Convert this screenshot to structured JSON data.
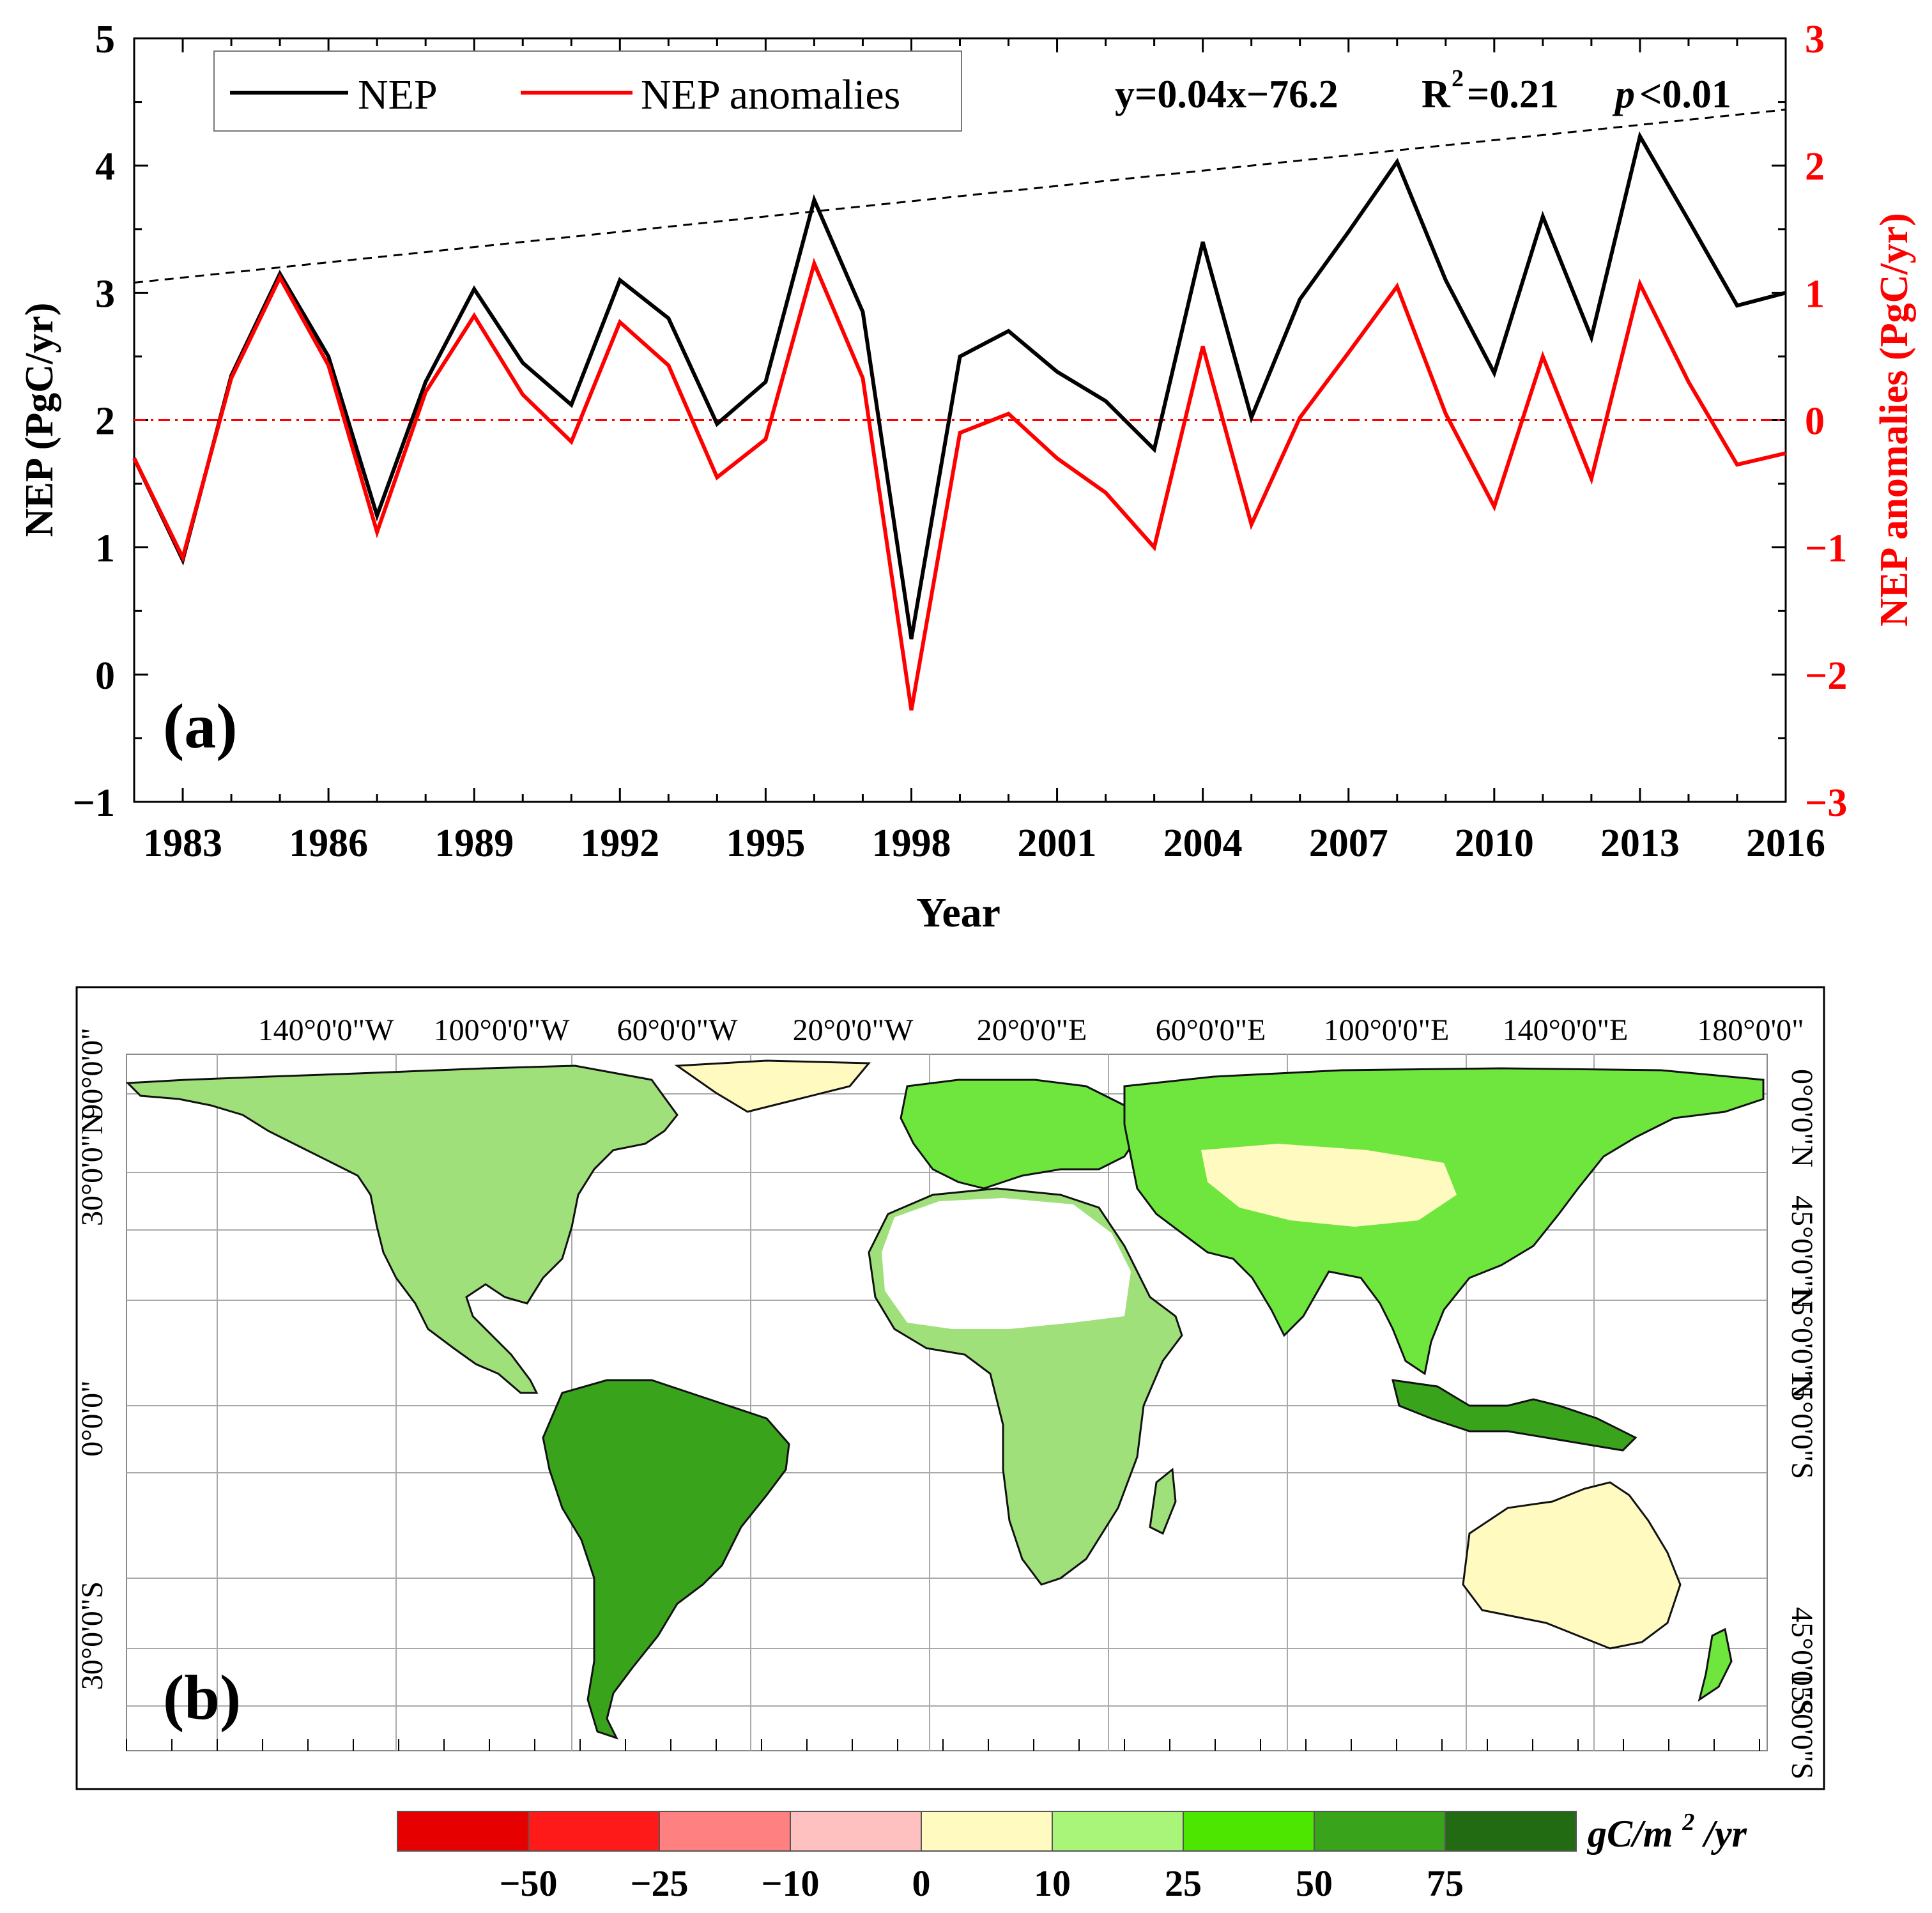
{
  "colors": {
    "nep": "#000000",
    "anomaly": "#ff0000",
    "trend": "#000000",
    "zero_line": "#ff0000",
    "ocean": "#ffffff",
    "land_base": "#fffac0",
    "grid": "#a9a9a9"
  },
  "panel_a": {
    "label": "(a)",
    "equation": {
      "fit": "y=0.04x−76.2",
      "r_label": "R",
      "r_sup": "2",
      "r_value": "=0.21",
      "p_label": "p",
      "p_value": "<0.01"
    },
    "legend": [
      {
        "name": "NEP",
        "color": "#000000"
      },
      {
        "name": "NEP anomalies",
        "color": "#ff0000"
      }
    ]
  },
  "panel_b": {
    "label": "(b)",
    "top_labels": [
      "140°0'0\"W",
      "100°0'0\"W",
      "60°0'0\"W",
      "20°0'0\"W",
      "20°0'0\"E",
      "60°0'0\"E",
      "100°0'0\"E",
      "140°0'0\"E",
      "180°0'0\""
    ],
    "left_labels": [
      "90°0'0\"",
      "30°0'0\"N",
      "0°0'0\"",
      "30°0'0\"S"
    ],
    "left_labels_2": [
      "0°0'0\"",
      "30°0'0\"S"
    ],
    "right_labels": [
      "0°0'0\"N",
      "45°0'0\"N",
      "15°0'0\"N",
      "15°0'0\"S",
      "45°0'0\"S",
      "15°0'0\"S"
    ],
    "colorbar": {
      "unit_prefix": "gC/m",
      "unit_sup": "2",
      "unit_suffix": "/yr",
      "colors": [
        "#e60000",
        "#ff1a1a",
        "#ff8080",
        "#ffc0c0",
        "#fffac0",
        "#a8f57a",
        "#4de600",
        "#3aa31c",
        "#236b12"
      ],
      "tick_labels": [
        "−50",
        "−25",
        "−10",
        "0",
        "10",
        "25",
        "50",
        "75"
      ]
    }
  },
  "chart_data": {
    "type": "line",
    "title": "",
    "xlabel": "Year",
    "ylabel": "NEP (PgC/yr)",
    "y2label": "NEP anomalies (PgC/yr)",
    "xlim": [
      1982,
      2016
    ],
    "ylim": [
      -1,
      5
    ],
    "y2lim": [
      -3,
      3
    ],
    "x_ticks": [
      1983,
      1986,
      1989,
      1992,
      1995,
      1998,
      2001,
      2004,
      2007,
      2010,
      2013,
      2016
    ],
    "y_ticks": [
      -1,
      0,
      1,
      2,
      3,
      4,
      5
    ],
    "y_tick_labels": [
      "−1",
      "0",
      "1",
      "2",
      "3",
      "4",
      "5"
    ],
    "y2_ticks": [
      -3,
      -2,
      -1,
      0,
      1,
      2,
      3
    ],
    "y2_tick_labels": [
      "−3",
      "−2",
      "−1",
      "0",
      "1",
      "2",
      "3"
    ],
    "x": [
      1982,
      1983,
      1984,
      1985,
      1986,
      1987,
      1988,
      1989,
      1990,
      1991,
      1992,
      1993,
      1994,
      1995,
      1996,
      1997,
      1998,
      1999,
      2000,
      2001,
      2002,
      2003,
      2004,
      2005,
      2006,
      2007,
      2008,
      2009,
      2010,
      2011,
      2012,
      2013,
      2014,
      2015,
      2016
    ],
    "series": [
      {
        "name": "NEP",
        "axis": "left",
        "values": [
          1.7,
          0.9,
          2.35,
          3.15,
          2.5,
          1.25,
          2.3,
          3.03,
          2.45,
          2.12,
          3.1,
          2.8,
          1.97,
          2.3,
          3.73,
          2.85,
          0.28,
          2.5,
          2.7,
          2.38,
          2.15,
          1.77,
          3.4,
          2.02,
          2.95,
          3.48,
          4.03,
          3.1,
          2.37,
          3.6,
          2.65,
          4.23,
          3.57,
          2.9,
          3.0
        ]
      },
      {
        "name": "NEP anomalies",
        "axis": "right",
        "values": [
          -0.3,
          -1.08,
          0.33,
          1.12,
          0.43,
          -0.88,
          0.22,
          0.82,
          0.2,
          -0.17,
          0.77,
          0.43,
          -0.45,
          -0.15,
          1.23,
          0.33,
          -2.28,
          -0.1,
          0.05,
          -0.3,
          -0.57,
          -1.0,
          0.58,
          -0.82,
          0.02,
          0.53,
          1.05,
          0.05,
          -0.68,
          0.5,
          -0.46,
          1.07,
          0.3,
          -0.35,
          -0.26
        ]
      }
    ],
    "trend": {
      "slope": 0.04,
      "intercept": -76.2,
      "x_range": [
        1982,
        2016
      ]
    },
    "zero_reference": {
      "axis": "right",
      "value": 0
    }
  }
}
